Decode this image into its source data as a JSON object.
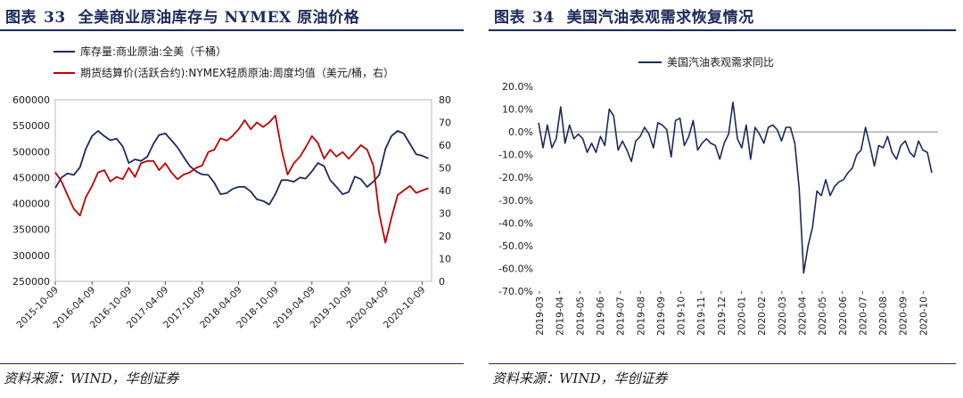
{
  "figures": [
    {
      "title_prefix": "图表",
      "number": "33",
      "title": "全美商业原油库存与 NYMEX 原油价格",
      "source": "资料来源：WIND，华创证券"
    },
    {
      "title_prefix": "图表",
      "number": "34",
      "title": "美国汽油表观需求恢复情况",
      "source": "资料来源：WIND，华创证券"
    }
  ],
  "chart_data": [
    {
      "type": "line",
      "title": "",
      "x_type": "date",
      "x_ticks": [
        "2015-10-09",
        "2016-04-09",
        "2016-10-09",
        "2017-04-09",
        "2017-10-09",
        "2018-04-09",
        "2018-10-09",
        "2019-04-09",
        "2019-10-09",
        "2020-04-09",
        "2020-10-09"
      ],
      "y_left": {
        "min": 250000,
        "max": 600000,
        "ticks": [
          "250000",
          "300000",
          "350000",
          "400000",
          "450000",
          "500000",
          "550000",
          "600000"
        ]
      },
      "y_right": {
        "min": 0,
        "max": 80,
        "ticks": [
          "0",
          "10",
          "20",
          "30",
          "40",
          "50",
          "60",
          "70",
          "80"
        ]
      },
      "legend_position": "top-left",
      "series": [
        {
          "name": "库存量:商业原油:全美（千桶）",
          "axis": "left",
          "color": "#1c2a5a",
          "points": [
            [
              "2015-10-09",
              430000
            ],
            [
              "2015-11-09",
              450000
            ],
            [
              "2015-12-09",
              458000
            ],
            [
              "2016-01-09",
              455000
            ],
            [
              "2016-02-09",
              470000
            ],
            [
              "2016-03-09",
              505000
            ],
            [
              "2016-04-09",
              530000
            ],
            [
              "2016-05-09",
              540000
            ],
            [
              "2016-06-09",
              530000
            ],
            [
              "2016-07-09",
              522000
            ],
            [
              "2016-08-09",
              525000
            ],
            [
              "2016-09-09",
              510000
            ],
            [
              "2016-10-09",
              478000
            ],
            [
              "2016-11-09",
              485000
            ],
            [
              "2016-12-09",
              482000
            ],
            [
              "2017-01-09",
              490000
            ],
            [
              "2017-02-09",
              515000
            ],
            [
              "2017-03-09",
              532000
            ],
            [
              "2017-04-09",
              535000
            ],
            [
              "2017-05-09",
              522000
            ],
            [
              "2017-06-09",
              508000
            ],
            [
              "2017-07-09",
              490000
            ],
            [
              "2017-08-09",
              472000
            ],
            [
              "2017-09-09",
              462000
            ],
            [
              "2017-10-09",
              456000
            ],
            [
              "2017-11-09",
              455000
            ],
            [
              "2017-12-09",
              440000
            ],
            [
              "2018-01-09",
              418000
            ],
            [
              "2018-02-09",
              420000
            ],
            [
              "2018-03-09",
              428000
            ],
            [
              "2018-04-09",
              432000
            ],
            [
              "2018-05-09",
              432000
            ],
            [
              "2018-06-09",
              423000
            ],
            [
              "2018-07-09",
              408000
            ],
            [
              "2018-08-09",
              405000
            ],
            [
              "2018-09-09",
              398000
            ],
            [
              "2018-10-09",
              418000
            ],
            [
              "2018-11-09",
              445000
            ],
            [
              "2018-12-09",
              445000
            ],
            [
              "2019-01-09",
              442000
            ],
            [
              "2019-02-09",
              450000
            ],
            [
              "2019-03-09",
              448000
            ],
            [
              "2019-04-09",
              462000
            ],
            [
              "2019-05-09",
              478000
            ],
            [
              "2019-06-09",
              472000
            ],
            [
              "2019-07-09",
              445000
            ],
            [
              "2019-08-09",
              432000
            ],
            [
              "2019-09-09",
              418000
            ],
            [
              "2019-10-09",
              422000
            ],
            [
              "2019-11-09",
              452000
            ],
            [
              "2019-12-09",
              447000
            ],
            [
              "2020-01-09",
              432000
            ],
            [
              "2020-02-09",
              442000
            ],
            [
              "2020-03-09",
              455000
            ],
            [
              "2020-04-09",
              505000
            ],
            [
              "2020-05-09",
              530000
            ],
            [
              "2020-06-09",
              540000
            ],
            [
              "2020-07-09",
              535000
            ],
            [
              "2020-08-09",
              515000
            ],
            [
              "2020-09-09",
              495000
            ],
            [
              "2020-10-09",
              492000
            ],
            [
              "2020-11-09",
              487000
            ]
          ]
        },
        {
          "name": "期货结算价(活跃合约):NYMEX轻质原油:周度均值（美元/桶，右）",
          "axis": "right",
          "color": "#c00000",
          "points": [
            [
              "2015-10-09",
              48
            ],
            [
              "2015-11-09",
              44
            ],
            [
              "2015-12-09",
              38
            ],
            [
              "2016-01-09",
              32
            ],
            [
              "2016-02-09",
              29
            ],
            [
              "2016-03-09",
              37
            ],
            [
              "2016-04-09",
              42
            ],
            [
              "2016-05-09",
              48
            ],
            [
              "2016-06-09",
              49
            ],
            [
              "2016-07-09",
              44
            ],
            [
              "2016-08-09",
              46
            ],
            [
              "2016-09-09",
              45
            ],
            [
              "2016-10-09",
              50
            ],
            [
              "2016-11-09",
              46
            ],
            [
              "2016-12-09",
              52
            ],
            [
              "2017-01-09",
              53
            ],
            [
              "2017-02-09",
              53
            ],
            [
              "2017-03-09",
              49
            ],
            [
              "2017-04-09",
              52
            ],
            [
              "2017-05-09",
              48
            ],
            [
              "2017-06-09",
              45
            ],
            [
              "2017-07-09",
              47
            ],
            [
              "2017-08-09",
              48
            ],
            [
              "2017-09-09",
              50
            ],
            [
              "2017-10-09",
              51
            ],
            [
              "2017-11-09",
              57
            ],
            [
              "2017-12-09",
              58
            ],
            [
              "2018-01-09",
              63
            ],
            [
              "2018-02-09",
              62
            ],
            [
              "2018-03-09",
              64
            ],
            [
              "2018-04-09",
              67
            ],
            [
              "2018-05-09",
              71
            ],
            [
              "2018-06-09",
              67
            ],
            [
              "2018-07-09",
              70
            ],
            [
              "2018-08-09",
              68
            ],
            [
              "2018-09-09",
              70
            ],
            [
              "2018-10-09",
              73
            ],
            [
              "2018-11-09",
              58
            ],
            [
              "2018-12-09",
              47
            ],
            [
              "2019-01-09",
              52
            ],
            [
              "2019-02-09",
              55
            ],
            [
              "2019-03-09",
              59
            ],
            [
              "2019-04-09",
              64
            ],
            [
              "2019-05-09",
              61
            ],
            [
              "2019-06-09",
              54
            ],
            [
              "2019-07-09",
              58
            ],
            [
              "2019-08-09",
              55
            ],
            [
              "2019-09-09",
              57
            ],
            [
              "2019-10-09",
              54
            ],
            [
              "2019-11-09",
              57
            ],
            [
              "2019-12-09",
              60
            ],
            [
              "2020-01-09",
              58
            ],
            [
              "2020-02-09",
              51
            ],
            [
              "2020-03-09",
              30
            ],
            [
              "2020-04-09",
              17
            ],
            [
              "2020-05-09",
              28
            ],
            [
              "2020-06-09",
              38
            ],
            [
              "2020-07-09",
              40
            ],
            [
              "2020-08-09",
              42
            ],
            [
              "2020-09-09",
              39
            ],
            [
              "2020-10-09",
              40
            ],
            [
              "2020-11-09",
              41
            ]
          ]
        }
      ]
    },
    {
      "type": "line",
      "title": "",
      "x_type": "month",
      "x_ticks": [
        "2019-03",
        "2019-04",
        "2019-05",
        "2019-06",
        "2019-07",
        "2019-08",
        "2019-09",
        "2019-10",
        "2019-11",
        "2019-12",
        "2020-01",
        "2020-02",
        "2020-03",
        "2020-04",
        "2020-05",
        "2020-06",
        "2020-07",
        "2020-08",
        "2020-09",
        "2020-10"
      ],
      "y_axis": {
        "min": -70,
        "max": 20,
        "unit": "%",
        "ticks": [
          "20.0%",
          "10.0%",
          "0.0%",
          "-10.0%",
          "-20.0%",
          "-30.0%",
          "-40.0%",
          "-50.0%",
          "-60.0%",
          "-70.0%"
        ]
      },
      "grid": false,
      "legend_position": "top",
      "series": [
        {
          "name": "美国汽油表观需求同比",
          "color": "#1c2a5a",
          "values": [
            4,
            -7,
            3,
            -7,
            -3,
            11,
            -5,
            3,
            -3,
            -1,
            -3,
            -9,
            -5,
            -9,
            -2,
            -6,
            10,
            7,
            -8,
            -4,
            -8,
            -13,
            -4,
            -2,
            2,
            -1,
            -7,
            4,
            3,
            1,
            -11,
            5,
            6,
            -6,
            -2,
            5,
            -8,
            -5,
            -3,
            -5,
            -6,
            -12,
            -5,
            -1,
            13,
            -3,
            -7,
            3,
            -12,
            2,
            -1,
            -5,
            2,
            3,
            1,
            -4,
            2,
            2,
            -5,
            -25,
            -62,
            -50,
            -42,
            -26,
            -28,
            -21,
            -28,
            -24,
            -22,
            -21,
            -18,
            -16,
            -10,
            -8,
            2,
            -6,
            -15,
            -6,
            -7,
            -2,
            -9,
            -12,
            -6,
            -4,
            -9,
            -11,
            -4,
            -8,
            -9,
            -18
          ]
        }
      ]
    }
  ]
}
